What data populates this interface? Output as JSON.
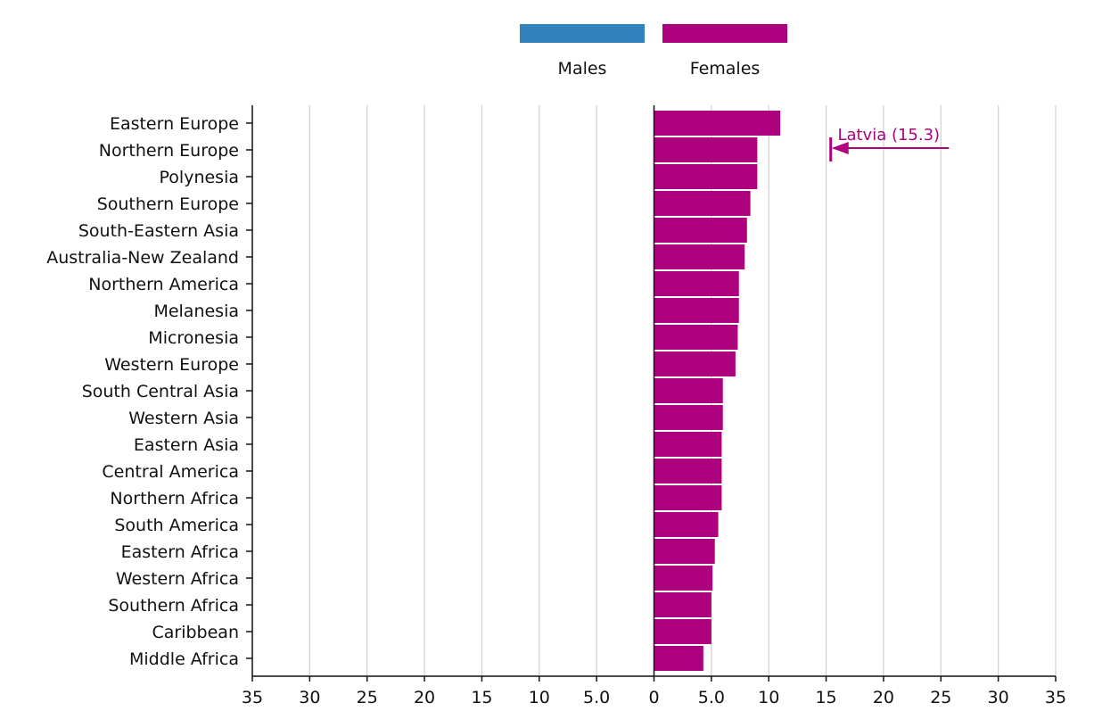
{
  "chart_data": {
    "type": "bar",
    "orientation": "horizontal",
    "layout": "population-pyramid",
    "categories": [
      "Eastern Europe",
      "Northern Europe",
      "Polynesia",
      "Southern Europe",
      "South-Eastern Asia",
      "Australia-New Zealand",
      "Northern America",
      "Melanesia",
      "Micronesia",
      "Western Europe",
      "South Central Asia",
      "Western Asia",
      "Eastern Asia",
      "Central America",
      "Northern Africa",
      "South America",
      "Eastern Africa",
      "Western Africa",
      "Southern Africa",
      "Caribbean",
      "Middle Africa"
    ],
    "series": [
      {
        "name": "Males",
        "color": "#3182bd",
        "side": "left",
        "values": [
          0,
          0,
          0,
          0,
          0,
          0,
          0,
          0,
          0,
          0,
          0,
          0,
          0,
          0,
          0,
          0,
          0,
          0,
          0,
          0,
          0
        ]
      },
      {
        "name": "Females",
        "color": "#ae017e",
        "side": "right",
        "values": [
          11.0,
          9.0,
          9.0,
          8.4,
          8.1,
          7.9,
          7.4,
          7.4,
          7.3,
          7.1,
          6.0,
          6.0,
          5.9,
          5.9,
          5.9,
          5.6,
          5.3,
          5.1,
          5.0,
          5.0,
          4.3
        ]
      }
    ],
    "xlim": [
      -35,
      35
    ],
    "xticks": [
      -35,
      -30,
      -25,
      -20,
      -15,
      -10,
      -5,
      0,
      5,
      10,
      15,
      20,
      25,
      30,
      35
    ],
    "xtick_labels": [
      "35",
      "30",
      "25",
      "20",
      "15",
      "10",
      "5.0",
      "0",
      "5.0",
      "10",
      "15",
      "20",
      "25",
      "30",
      "35"
    ],
    "grid": true,
    "legend": {
      "position": "top-center",
      "entries": [
        "Males",
        "Females"
      ]
    },
    "title": "",
    "xlabel": "",
    "ylabel": "",
    "annotation": {
      "label": "Latvia (15.3)",
      "value": 15.3,
      "category": "Northern Europe",
      "color": "#ae017e"
    }
  }
}
